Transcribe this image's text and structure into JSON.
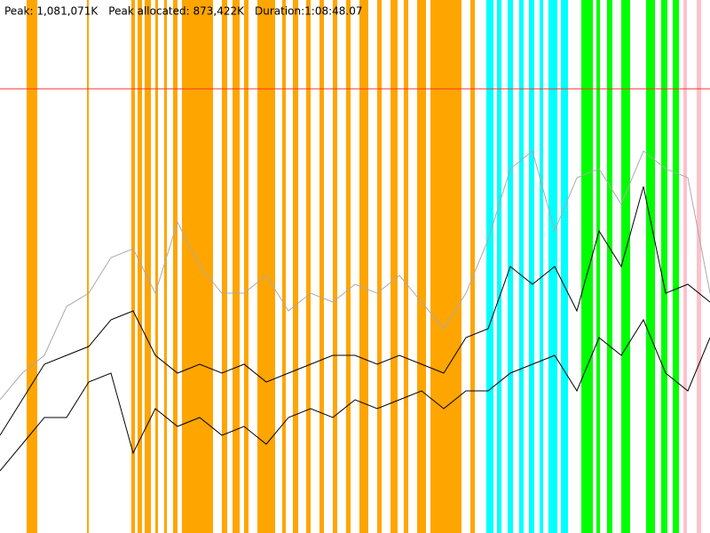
{
  "chart_data": {
    "type": "line",
    "header": [
      "Peak: 1,081,071K",
      "Peak allocated: 873,422K",
      "Duration:1:08:48.07"
    ],
    "xlim": [
      0,
      800
    ],
    "ylim": [
      0,
      1297285
    ],
    "x": [
      0,
      25,
      50,
      75,
      100,
      125,
      150,
      175,
      200,
      225,
      250,
      275,
      300,
      325,
      350,
      375,
      400,
      425,
      450,
      475,
      500,
      525,
      550,
      575,
      600,
      625,
      650,
      675,
      700,
      725,
      750,
      775,
      800
    ],
    "series": [
      {
        "color": "#aaaaaa",
        "values": [
          324300,
          389200,
          432400,
          551300,
          583700,
          670200,
          691800,
          583700,
          756700,
          648600,
          583700,
          583700,
          627000,
          540500,
          583700,
          562100,
          605400,
          583700,
          627000,
          562100,
          497300,
          583700,
          713500,
          886400,
          929700,
          735100,
          864800,
          886400,
          799900,
          929700,
          886400,
          864800,
          583700
        ]
      },
      {
        "color": "#000000",
        "values": [
          237800,
          324300,
          410800,
          432400,
          454000,
          518900,
          540500,
          432400,
          389200,
          410800,
          389200,
          410800,
          367500,
          389200,
          410800,
          432400,
          432400,
          410800,
          432400,
          410800,
          389200,
          475600,
          497300,
          648600,
          605400,
          648600,
          540500,
          735100,
          648600,
          843200,
          583700,
          605400,
          562100
        ]
      },
      {
        "color": "#000000",
        "values": [
          151300,
          216200,
          281100,
          281100,
          367500,
          389200,
          194600,
          302700,
          259400,
          281100,
          237800,
          259400,
          216200,
          281100,
          302700,
          281100,
          324300,
          302700,
          324300,
          345900,
          302700,
          345900,
          345900,
          389200,
          410800,
          432400,
          345900,
          475600,
          432400,
          518900,
          389200,
          345900,
          475600
        ]
      }
    ],
    "peak_line": {
      "value": 1081071,
      "color": "#ff3030"
    },
    "bands": [
      {
        "color": "#ffa500",
        "ranges": [
          [
            30,
            42
          ],
          [
            98,
            100
          ],
          [
            148,
            152
          ],
          [
            155,
            160
          ],
          [
            163,
            170
          ],
          [
            175,
            178
          ],
          [
            185,
            188
          ],
          [
            195,
            200
          ],
          [
            205,
            240
          ],
          [
            250,
            256
          ],
          [
            262,
            270
          ],
          [
            275,
            280
          ],
          [
            290,
            310
          ],
          [
            318,
            322
          ],
          [
            330,
            336
          ],
          [
            345,
            350
          ],
          [
            360,
            365
          ],
          [
            375,
            380
          ],
          [
            390,
            395
          ],
          [
            405,
            415
          ],
          [
            425,
            430
          ],
          [
            440,
            448
          ],
          [
            455,
            460
          ],
          [
            470,
            480
          ],
          [
            485,
            520
          ],
          [
            530,
            535
          ]
        ]
      },
      {
        "color": "#00ffff",
        "ranges": [
          [
            548,
            556
          ],
          [
            560,
            565
          ],
          [
            572,
            578
          ],
          [
            585,
            590
          ],
          [
            596,
            602
          ],
          [
            608,
            612
          ],
          [
            618,
            628
          ],
          [
            632,
            640
          ]
        ]
      },
      {
        "color": "#00ff00",
        "ranges": [
          [
            655,
            668
          ],
          [
            672,
            676
          ],
          [
            684,
            690
          ],
          [
            700,
            710
          ],
          [
            728,
            738
          ],
          [
            745,
            752
          ],
          [
            758,
            765
          ]
        ]
      },
      {
        "color": "#ffc0cb",
        "ranges": [
          [
            770,
            774
          ],
          [
            785,
            790
          ]
        ]
      }
    ]
  }
}
